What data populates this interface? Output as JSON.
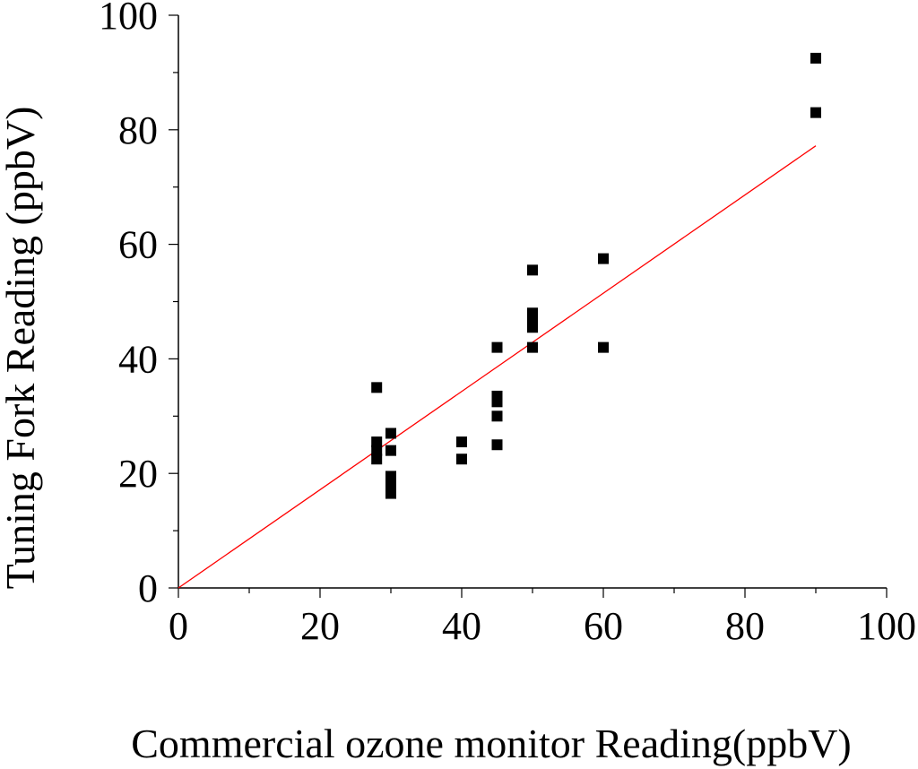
{
  "chart_data": {
    "type": "scatter",
    "xlabel": "Commercial ozone monitor Reading(ppbV)",
    "ylabel": "Tuning Fork Reading (ppbV)",
    "xlim": [
      0,
      100
    ],
    "ylim": [
      0,
      100
    ],
    "x_ticks": [
      "0",
      "20",
      "40",
      "60",
      "80",
      "100"
    ],
    "y_ticks": [
      "0",
      "20",
      "40",
      "60",
      "80",
      "100"
    ],
    "grid": false,
    "points": [
      {
        "x": 28,
        "y": 35
      },
      {
        "x": 28,
        "y": 25.5
      },
      {
        "x": 28,
        "y": 24
      },
      {
        "x": 28,
        "y": 22.5
      },
      {
        "x": 30,
        "y": 27
      },
      {
        "x": 30,
        "y": 24
      },
      {
        "x": 30,
        "y": 19.5
      },
      {
        "x": 30,
        "y": 18
      },
      {
        "x": 30,
        "y": 16.5
      },
      {
        "x": 40,
        "y": 25.5
      },
      {
        "x": 40,
        "y": 22.5
      },
      {
        "x": 45,
        "y": 42
      },
      {
        "x": 45,
        "y": 33.5
      },
      {
        "x": 45,
        "y": 32.5
      },
      {
        "x": 45,
        "y": 30
      },
      {
        "x": 45,
        "y": 25
      },
      {
        "x": 50,
        "y": 55.5
      },
      {
        "x": 50,
        "y": 48
      },
      {
        "x": 50,
        "y": 46.5
      },
      {
        "x": 50,
        "y": 45.5
      },
      {
        "x": 50,
        "y": 42
      },
      {
        "x": 60,
        "y": 57.5
      },
      {
        "x": 60,
        "y": 42
      },
      {
        "x": 90,
        "y": 92.5
      },
      {
        "x": 90,
        "y": 83
      }
    ],
    "fit_line": {
      "x": [
        0,
        90
      ],
      "y": [
        0,
        77.2
      ],
      "color": "#ff0000"
    },
    "marker_color": "#000000"
  }
}
